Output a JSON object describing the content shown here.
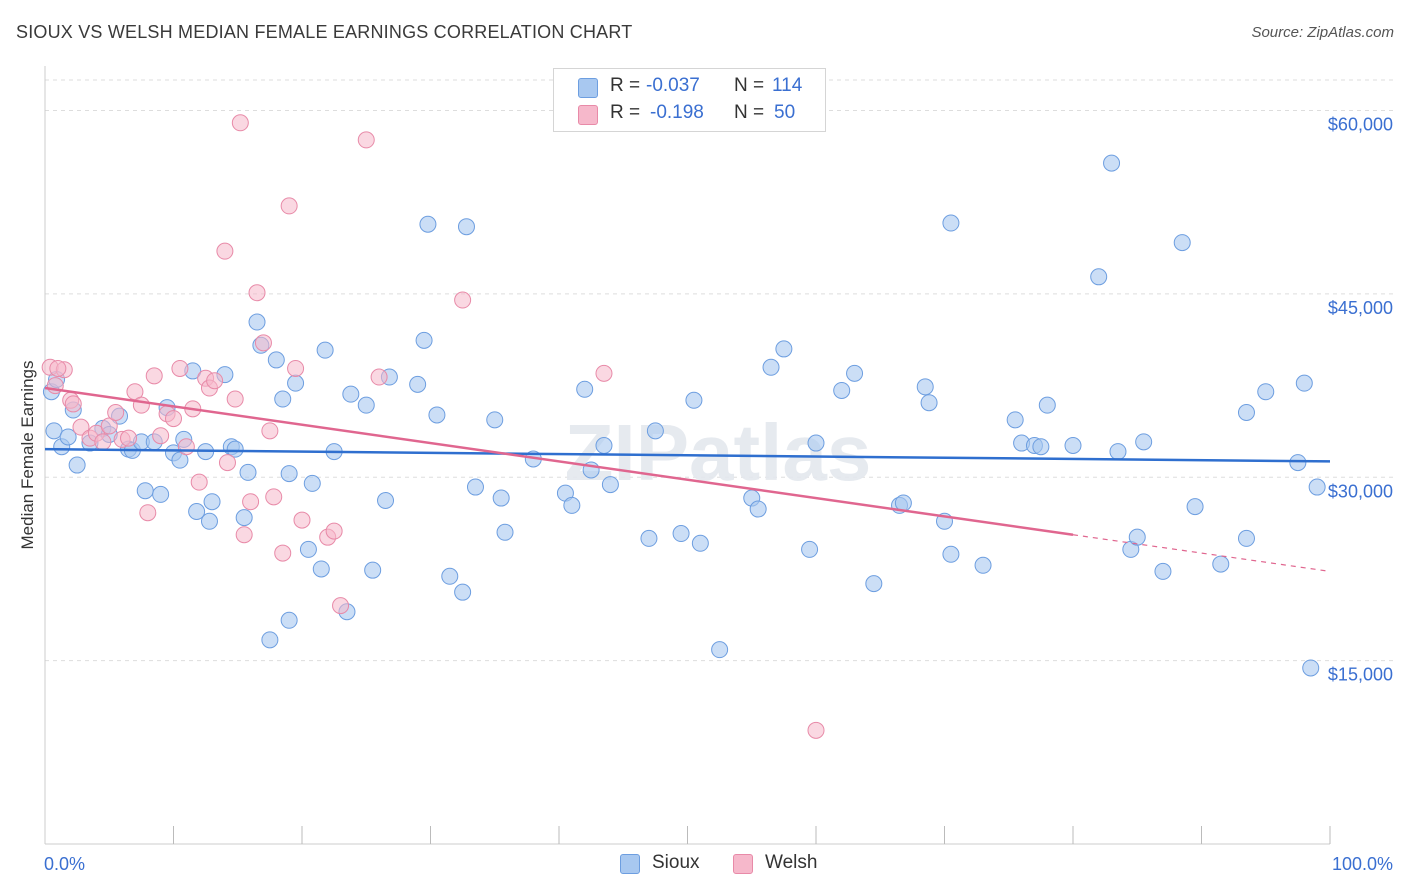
{
  "title": "SIOUX VS WELSH MEDIAN FEMALE EARNINGS CORRELATION CHART",
  "source": "Source: ZipAtlas.com",
  "watermark": "ZIPatlas",
  "colors": {
    "sioux_fill": "#a8c8f0",
    "sioux_stroke": "#6d9ee0",
    "sioux_line": "#2f6fcf",
    "welsh_fill": "#f6b8cb",
    "welsh_stroke": "#e88aa8",
    "welsh_line": "#e0668f",
    "accent_text": "#3a6fd1",
    "grid": "#dddddd"
  },
  "stats": {
    "sioux": {
      "r_label": "R =",
      "r_value": "-0.037",
      "n_label": "N =",
      "n_value": "114"
    },
    "welsh": {
      "r_label": "R =",
      "r_value": "-0.198",
      "n_label": "N =",
      "n_value": "50"
    }
  },
  "legend": {
    "sioux": "Sioux",
    "welsh": "Welsh"
  },
  "chart_data": {
    "type": "scatter",
    "title": "SIOUX VS WELSH MEDIAN FEMALE EARNINGS CORRELATION CHART",
    "xlabel": "",
    "ylabel": "Median Female Earnings",
    "xlim": [
      0,
      100
    ],
    "ylim": [
      0,
      60000
    ],
    "x_tick_labels": [
      "0.0%",
      "100.0%"
    ],
    "y_ticks": [
      15000,
      30000,
      45000,
      60000
    ],
    "y_tick_labels": [
      "$15,000",
      "$30,000",
      "$45,000",
      "$60,000"
    ],
    "grid": "horizontal dashed",
    "legend_position": "bottom-center",
    "series": [
      {
        "name": "Sioux",
        "trend": {
          "x": [
            0,
            100
          ],
          "y": [
            32300,
            31300
          ]
        },
        "points": [
          [
            0.5,
            37000
          ],
          [
            0.7,
            33800
          ],
          [
            1.3,
            32500
          ],
          [
            1.8,
            33300
          ],
          [
            2.2,
            35500
          ],
          [
            2.5,
            31000
          ],
          [
            3.5,
            32800
          ],
          [
            4.5,
            34000
          ],
          [
            5.0,
            33500
          ],
          [
            5.8,
            35000
          ],
          [
            6.5,
            32300
          ],
          [
            6.8,
            32200
          ],
          [
            7.5,
            32900
          ],
          [
            7.8,
            28900
          ],
          [
            8.5,
            32900
          ],
          [
            9.0,
            28600
          ],
          [
            9.5,
            35700
          ],
          [
            10.0,
            32000
          ],
          [
            10.5,
            31400
          ],
          [
            10.8,
            33100
          ],
          [
            11.5,
            38700
          ],
          [
            11.8,
            27200
          ],
          [
            12.5,
            32100
          ],
          [
            12.8,
            26400
          ],
          [
            13.0,
            28000
          ],
          [
            14.0,
            38400
          ],
          [
            14.5,
            32500
          ],
          [
            14.8,
            32300
          ],
          [
            15.5,
            26700
          ],
          [
            15.8,
            30400
          ],
          [
            16.5,
            42700
          ],
          [
            16.8,
            40800
          ],
          [
            17.5,
            16700
          ],
          [
            18.0,
            39600
          ],
          [
            18.5,
            36400
          ],
          [
            19.0,
            18300
          ],
          [
            19.0,
            30300
          ],
          [
            19.5,
            37700
          ],
          [
            20.5,
            24100
          ],
          [
            20.8,
            29500
          ],
          [
            21.5,
            22500
          ],
          [
            21.8,
            40400
          ],
          [
            22.5,
            32100
          ],
          [
            23.5,
            19000
          ],
          [
            23.8,
            36800
          ],
          [
            25.0,
            35900
          ],
          [
            25.5,
            22400
          ],
          [
            26.5,
            28100
          ],
          [
            26.8,
            38200
          ],
          [
            29.0,
            37600
          ],
          [
            29.5,
            41200
          ],
          [
            29.8,
            50700
          ],
          [
            30.5,
            35100
          ],
          [
            31.5,
            21900
          ],
          [
            32.5,
            20600
          ],
          [
            32.8,
            50500
          ],
          [
            33.5,
            29200
          ],
          [
            35.0,
            34700
          ],
          [
            35.5,
            28300
          ],
          [
            35.8,
            25500
          ],
          [
            40.5,
            28700
          ],
          [
            41.0,
            27700
          ],
          [
            42.0,
            37200
          ],
          [
            42.5,
            30600
          ],
          [
            43.5,
            32600
          ],
          [
            44.0,
            29400
          ],
          [
            47.0,
            25000
          ],
          [
            47.5,
            33800
          ],
          [
            49.5,
            25400
          ],
          [
            50.5,
            36300
          ],
          [
            51.0,
            24600
          ],
          [
            52.5,
            15900
          ],
          [
            55.0,
            28300
          ],
          [
            55.5,
            27400
          ],
          [
            56.5,
            39000
          ],
          [
            57.5,
            40500
          ],
          [
            59.5,
            24100
          ],
          [
            60.0,
            32800
          ],
          [
            62.0,
            37100
          ],
          [
            63.0,
            38500
          ],
          [
            64.5,
            21300
          ],
          [
            66.5,
            27700
          ],
          [
            66.8,
            27900
          ],
          [
            68.5,
            37400
          ],
          [
            68.8,
            36100
          ],
          [
            70.0,
            26400
          ],
          [
            70.5,
            50800
          ],
          [
            70.5,
            23700
          ],
          [
            73.0,
            22800
          ],
          [
            75.5,
            34700
          ],
          [
            76.0,
            32800
          ],
          [
            77.0,
            32600
          ],
          [
            77.5,
            32500
          ],
          [
            78.0,
            35900
          ],
          [
            80.0,
            32600
          ],
          [
            82.0,
            46400
          ],
          [
            83.0,
            55700
          ],
          [
            83.5,
            32100
          ],
          [
            84.5,
            24100
          ],
          [
            85.0,
            25100
          ],
          [
            85.5,
            32900
          ],
          [
            87.0,
            22300
          ],
          [
            88.5,
            49200
          ],
          [
            89.5,
            27600
          ],
          [
            91.5,
            22900
          ],
          [
            93.5,
            35300
          ],
          [
            93.5,
            25000
          ],
          [
            95.0,
            37000
          ],
          [
            97.5,
            31200
          ],
          [
            98.0,
            37700
          ],
          [
            98.5,
            14400
          ],
          [
            99.0,
            29200
          ],
          [
            0.9,
            38000
          ],
          [
            38.0,
            31500
          ]
        ]
      },
      {
        "name": "Welsh",
        "trend": {
          "x": [
            0,
            80
          ],
          "y": [
            37300,
            25300
          ]
        },
        "trend_dashed": {
          "x": [
            80,
            100
          ],
          "y": [
            25300,
            22300
          ]
        },
        "points": [
          [
            0.4,
            39000
          ],
          [
            0.8,
            37500
          ],
          [
            1.5,
            38800
          ],
          [
            2.0,
            36300
          ],
          [
            2.2,
            36000
          ],
          [
            2.8,
            34100
          ],
          [
            3.5,
            33200
          ],
          [
            4.0,
            33600
          ],
          [
            4.5,
            32900
          ],
          [
            5.0,
            34200
          ],
          [
            5.5,
            35300
          ],
          [
            6.0,
            33100
          ],
          [
            6.5,
            33200
          ],
          [
            7.0,
            37000
          ],
          [
            7.5,
            35900
          ],
          [
            8.0,
            27100
          ],
          [
            8.5,
            38300
          ],
          [
            9.0,
            33400
          ],
          [
            9.5,
            35200
          ],
          [
            10.0,
            34800
          ],
          [
            10.5,
            38900
          ],
          [
            11.0,
            32500
          ],
          [
            11.5,
            35600
          ],
          [
            12.0,
            29600
          ],
          [
            12.5,
            38100
          ],
          [
            12.8,
            37300
          ],
          [
            13.2,
            37900
          ],
          [
            14.0,
            48500
          ],
          [
            14.2,
            31200
          ],
          [
            14.8,
            36400
          ],
          [
            15.2,
            59000
          ],
          [
            15.5,
            25300
          ],
          [
            16.0,
            28000
          ],
          [
            16.5,
            45100
          ],
          [
            17.0,
            41000
          ],
          [
            17.5,
            33800
          ],
          [
            17.8,
            28400
          ],
          [
            18.5,
            23800
          ],
          [
            19.0,
            52200
          ],
          [
            19.5,
            38900
          ],
          [
            20.0,
            26500
          ],
          [
            22.0,
            25100
          ],
          [
            22.5,
            25600
          ],
          [
            23.0,
            19500
          ],
          [
            25.0,
            57600
          ],
          [
            26.0,
            38200
          ],
          [
            32.5,
            44500
          ],
          [
            43.5,
            38500
          ],
          [
            60.0,
            9300
          ],
          [
            1.0,
            38900
          ]
        ]
      }
    ]
  }
}
